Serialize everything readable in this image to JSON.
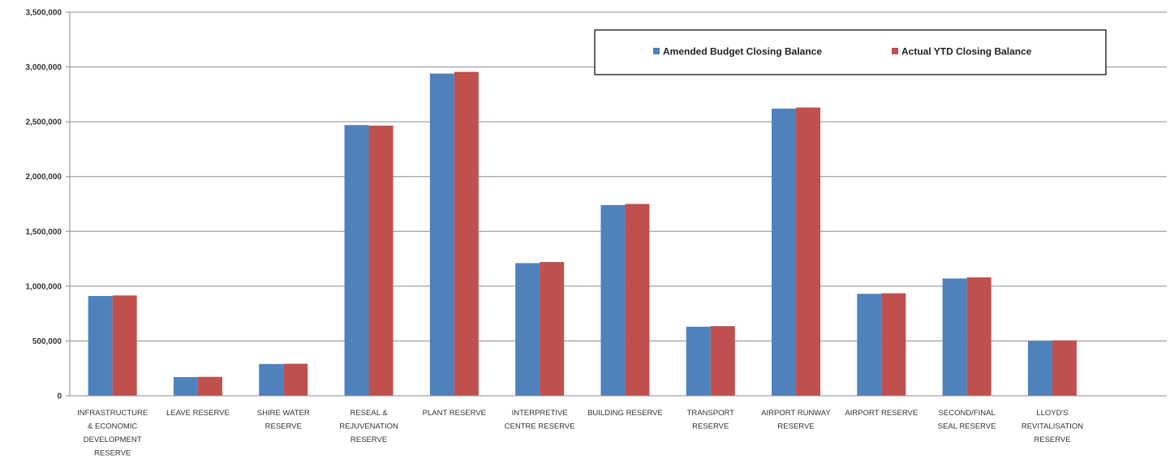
{
  "chart_data": {
    "type": "bar",
    "categories": [
      [
        "INFRASTRUCTURE",
        "& ECONOMIC",
        "DEVELOPMENT",
        "RESERVE"
      ],
      [
        "LEAVE RESERVE"
      ],
      [
        "SHIRE WATER",
        "RESERVE"
      ],
      [
        "RESEAL &",
        "REJUVENATION",
        "RESERVE"
      ],
      [
        "PLANT RESERVE"
      ],
      [
        "INTERPRETIVE",
        "CENTRE RESERVE"
      ],
      [
        "BUILDING RESERVE"
      ],
      [
        "TRANSPORT",
        "RESERVE"
      ],
      [
        "AIRPORT RUNWAY",
        "RESERVE"
      ],
      [
        "AIRPORT RESERVE"
      ],
      [
        "SECOND/FINAL",
        "SEAL RESERVE"
      ],
      [
        "LLOYD'S",
        "REVITALISATION",
        "RESERVE"
      ]
    ],
    "series": [
      {
        "name": "Amended Budget Closing Balance",
        "color": "#4f81bd",
        "values": [
          910000,
          170000,
          290000,
          2470000,
          2940000,
          1210000,
          1740000,
          630000,
          2620000,
          930000,
          1070000,
          500000
        ]
      },
      {
        "name": "Actual YTD Closing Balance",
        "color": "#c0504d",
        "values": [
          915000,
          172000,
          292000,
          2465000,
          2955000,
          1220000,
          1750000,
          635000,
          2630000,
          935000,
          1080000,
          505000
        ]
      }
    ],
    "ylim": [
      0,
      3500000
    ],
    "yticks": [
      "0",
      "500,000",
      "1,000,000",
      "1,500,000",
      "2,000,000",
      "2,500,000",
      "3,000,000",
      "3,500,000"
    ],
    "ytick_values": [
      0,
      500000,
      1000000,
      1500000,
      2000000,
      2500000,
      3000000,
      3500000
    ],
    "grid": true,
    "legend_position": "top-right",
    "title": "",
    "xlabel": "",
    "ylabel": ""
  }
}
